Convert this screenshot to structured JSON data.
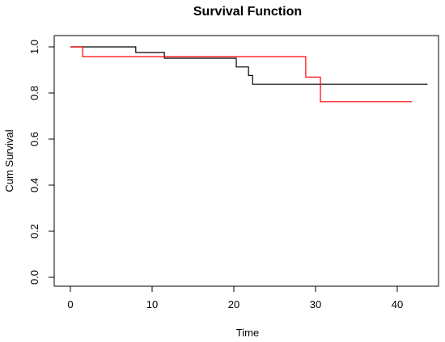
{
  "chart_data": {
    "type": "line",
    "title": "Survival Function",
    "xlabel": "Time",
    "ylabel": "Cum Survival",
    "xlim": [
      0,
      44
    ],
    "ylim": [
      0,
      1
    ],
    "x_ticks": [
      "0",
      "10",
      "20",
      "30",
      "40"
    ],
    "y_ticks": [
      "0.0",
      "0.2",
      "0.4",
      "0.6",
      "0.8",
      "1.0"
    ],
    "grid": false,
    "legend": "none",
    "series": [
      {
        "color": "#000000",
        "step": true,
        "x": [
          0,
          8,
          11.5,
          20.3,
          21.8,
          22.3,
          43.7
        ],
        "y": [
          1.0,
          0.976,
          0.951,
          0.913,
          0.876,
          0.838,
          0.838
        ]
      },
      {
        "color": "#ff0000",
        "step": true,
        "x": [
          0,
          1.5,
          28.8,
          30.6,
          41.8
        ],
        "y": [
          1.0,
          0.958,
          0.869,
          0.762,
          0.762
        ]
      }
    ]
  }
}
